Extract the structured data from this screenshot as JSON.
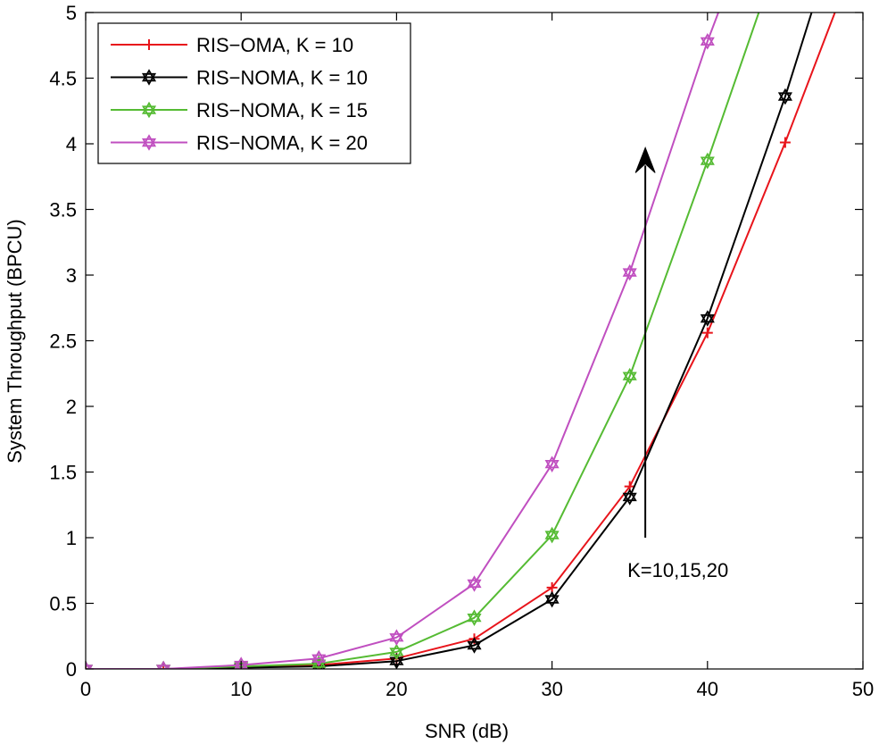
{
  "chart_data": {
    "type": "line",
    "title": "",
    "xlabel": "SNR (dB)",
    "ylabel": "System Throughput (BPCU)",
    "xlim": [
      0,
      50
    ],
    "ylim": [
      0,
      5
    ],
    "xticks": [
      0,
      10,
      20,
      30,
      40,
      50
    ],
    "xtick_labels": [
      "0",
      "10",
      "20",
      "30",
      "40",
      "50"
    ],
    "yticks": [
      0,
      0.5,
      1,
      1.5,
      2,
      2.5,
      3,
      3.5,
      4,
      4.5,
      5
    ],
    "ytick_labels": [
      "0",
      "0.5",
      "1",
      "1.5",
      "2",
      "2.5",
      "3",
      "3.5",
      "4",
      "4.5",
      "5"
    ],
    "grid": false,
    "legend_position": "top-left",
    "x": [
      0,
      5,
      10,
      15,
      20,
      25,
      30,
      35,
      40,
      45
    ],
    "series": [
      {
        "name": "RIS−OMA, K = 10",
        "color": "#e8141b",
        "marker": "plus",
        "values": [
          0.0,
          0.0,
          0.01,
          0.03,
          0.08,
          0.23,
          0.62,
          1.39,
          2.56,
          4.01
        ],
        "extension": {
          "x": 48.2,
          "y": 5.0
        }
      },
      {
        "name": "RIS−NOMA, K = 10",
        "color": "#000000",
        "marker": "hexagram",
        "values": [
          0.0,
          0.0,
          0.01,
          0.02,
          0.06,
          0.18,
          0.53,
          1.31,
          2.67,
          4.36
        ],
        "extension": {
          "x": 46.7,
          "y": 5.0
        }
      },
      {
        "name": "RIS−NOMA, K = 15",
        "color": "#55bb33",
        "marker": "hexagram",
        "values": [
          0.0,
          0.0,
          0.02,
          0.04,
          0.13,
          0.39,
          1.02,
          2.23,
          3.87,
          null
        ],
        "extension": {
          "x": 43.3,
          "y": 5.0
        }
      },
      {
        "name": "RIS−NOMA, K = 20",
        "color": "#c04fc0",
        "marker": "hexagram",
        "values": [
          0.0,
          0.0,
          0.03,
          0.08,
          0.24,
          0.65,
          1.56,
          3.02,
          4.78,
          null
        ],
        "extension": {
          "x": 40.7,
          "y": 5.0
        }
      }
    ],
    "annotations": [
      {
        "text": "K=10,15,20",
        "arrow": {
          "x": 36,
          "y_from": 1.0,
          "y_to": 3.97
        }
      }
    ]
  }
}
